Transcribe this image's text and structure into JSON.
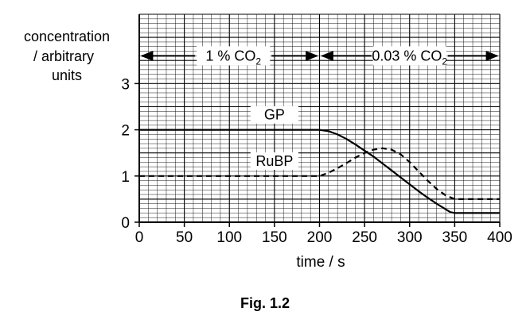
{
  "chart_data": {
    "type": "line",
    "ylabel_lines": [
      "concentration",
      "/ arbitrary",
      "units"
    ],
    "xlabel": "time / s",
    "caption": "Fig. 1.2",
    "xlim": [
      0,
      400
    ],
    "ylim": [
      0,
      4.5
    ],
    "x_ticks": [
      0,
      50,
      100,
      150,
      200,
      250,
      300,
      350,
      400
    ],
    "x_tick_labels": [
      "0",
      "50",
      "100",
      "150",
      "200",
      "250",
      "300",
      "350",
      "400"
    ],
    "y_ticks": [
      0,
      1,
      2,
      3
    ],
    "y_tick_labels": [
      "0",
      "1",
      "2",
      "3"
    ],
    "grid": true,
    "regions": [
      {
        "label": "1 % CO",
        "subscript": "2",
        "x_start": 0,
        "x_end": 200,
        "y": 3.6
      },
      {
        "label": "0.03 % CO",
        "subscript": "2",
        "x_start": 200,
        "x_end": 400,
        "y": 3.6
      }
    ],
    "series": [
      {
        "name": "GP",
        "style": "solid",
        "label_at": [
          150,
          2.22
        ],
        "x": [
          0,
          200,
          210,
          220,
          230,
          240,
          250,
          260,
          270,
          280,
          290,
          300,
          310,
          320,
          330,
          340,
          345,
          350,
          360,
          400
        ],
        "y": [
          2.0,
          2.0,
          1.97,
          1.9,
          1.8,
          1.68,
          1.55,
          1.42,
          1.27,
          1.12,
          0.97,
          0.82,
          0.67,
          0.53,
          0.4,
          0.28,
          0.22,
          0.2,
          0.2,
          0.2
        ]
      },
      {
        "name": "RuBP",
        "style": "dashed",
        "label_at": [
          150,
          1.22
        ],
        "x": [
          0,
          200,
          210,
          220,
          230,
          240,
          250,
          260,
          270,
          280,
          290,
          300,
          310,
          320,
          330,
          340,
          350,
          360,
          400
        ],
        "y": [
          1.0,
          1.0,
          1.07,
          1.17,
          1.28,
          1.4,
          1.5,
          1.57,
          1.6,
          1.57,
          1.47,
          1.3,
          1.1,
          0.9,
          0.72,
          0.58,
          0.5,
          0.5,
          0.5
        ]
      }
    ]
  }
}
